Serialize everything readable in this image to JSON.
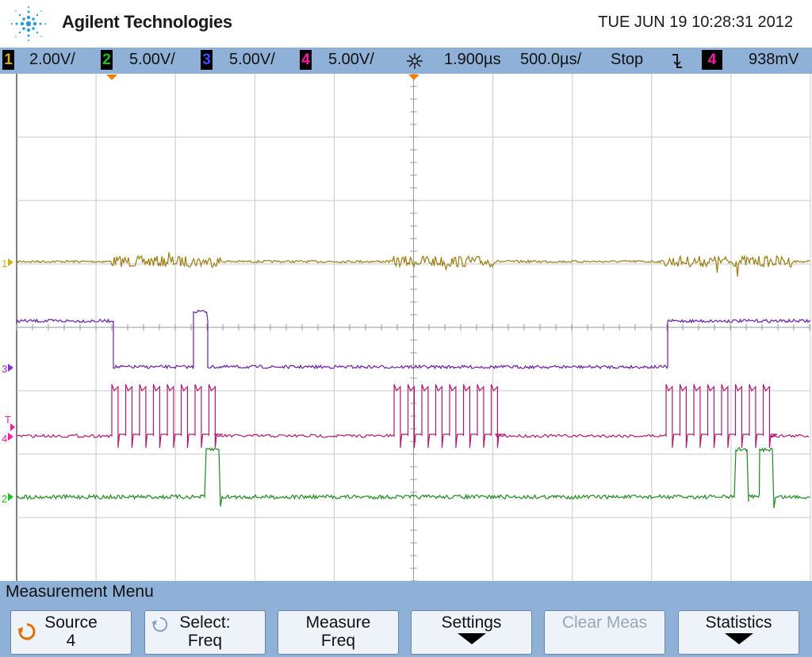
{
  "header": {
    "brand": "Agilent Technologies",
    "datetime": "TUE JUN 19 10:28:31 2012"
  },
  "statusbar": {
    "channels": [
      {
        "num": "1",
        "scale": "2.00V/",
        "color": "#d4ae1a"
      },
      {
        "num": "2",
        "scale": "5.00V/",
        "color": "#1fbf1f"
      },
      {
        "num": "3",
        "scale": "5.00V/",
        "color": "#3c50ff"
      },
      {
        "num": "4",
        "scale": "5.00V/",
        "color": "#ff1aa8"
      }
    ],
    "timebase_icon": "timebase-icon",
    "delay": "1.900µs",
    "timescale": "500.0µs/",
    "run_state": "Stop",
    "trigger_slope_icon": "falling-edge-icon",
    "trigger_source": "4",
    "trigger_level": "938mV"
  },
  "traces": {
    "ch1_color": "#9c7c10",
    "ch2_color": "#1e8a1e",
    "ch3_color": "#6a1fa8",
    "ch4_color": "#b0196e",
    "labels": {
      "ch1": "1",
      "ch2": "2",
      "ch3": "3",
      "ch4": "4",
      "trigger": "T"
    }
  },
  "menu": {
    "title": "Measurement Menu",
    "softkeys": [
      {
        "line1": "Source",
        "line2": "4",
        "icon": "rotate-knob-icon",
        "enabled": true
      },
      {
        "line1": "Select:",
        "line2": "Freq",
        "icon": "rotate-knob-icon",
        "enabled": true
      },
      {
        "line1": "Measure",
        "line2": "Freq",
        "enabled": true
      },
      {
        "line1": "Settings",
        "icon": "arrow-down-icon",
        "enabled": true
      },
      {
        "line1": "Clear Meas",
        "enabled": false
      },
      {
        "line1": "Statistics",
        "icon": "arrow-down-icon",
        "enabled": true
      }
    ]
  }
}
